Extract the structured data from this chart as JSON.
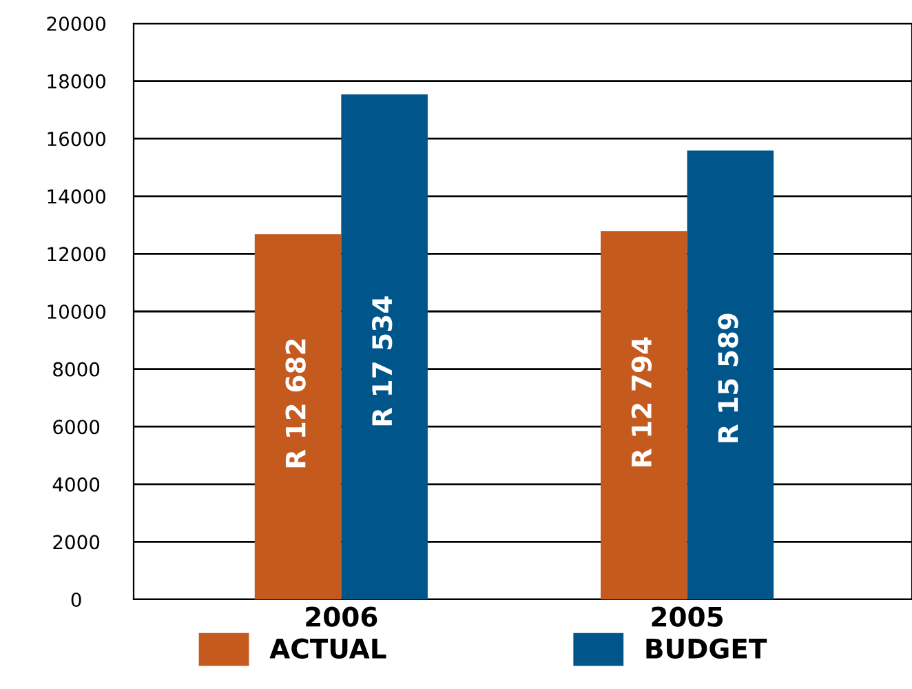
{
  "chart_data": {
    "type": "bar",
    "categories": [
      "2006",
      "2005"
    ],
    "series": [
      {
        "name": "ACTUAL",
        "color": "#c55a1f",
        "values": [
          12682,
          12794
        ],
        "value_labels": [
          "R 12 682",
          "R 12 794"
        ]
      },
      {
        "name": "BUDGET",
        "color": "#00558b",
        "values": [
          17534,
          15589
        ],
        "value_labels": [
          "R 17 534",
          "R 15 589"
        ]
      }
    ],
    "ylim": [
      0,
      20000
    ],
    "yticks": [
      0,
      2000,
      4000,
      6000,
      8000,
      10000,
      12000,
      14000,
      16000,
      18000,
      20000
    ],
    "grid": "y",
    "legend": "bottom"
  }
}
